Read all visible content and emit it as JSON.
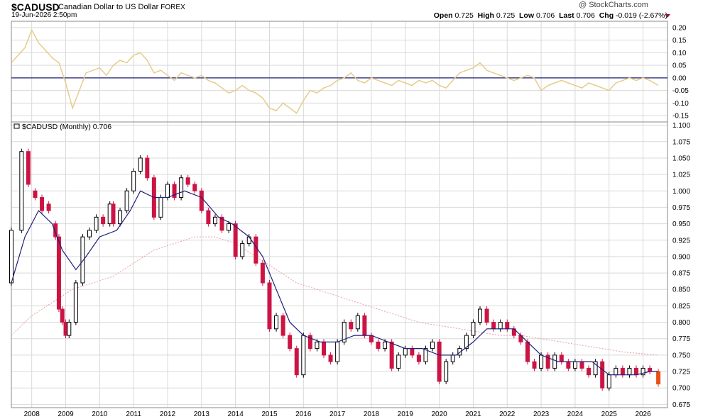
{
  "header": {
    "symbol": "$CADUSD",
    "description": "Canadian Dollar to US Dollar",
    "exchange": "FOREX",
    "timestamp": "19-Jun-2026 2:50pm",
    "watermark": "@ StockCharts.com",
    "quote": {
      "open_label": "Open",
      "open": "0.725",
      "high_label": "High",
      "high": "0.725",
      "low_label": "Low",
      "low": "0.706",
      "last_label": "Last",
      "last": "0.706",
      "chg_label": "Chg",
      "chg": "-0.019 (-2.67%)"
    }
  },
  "colors": {
    "up": "#000000",
    "down": "#cc1444",
    "last_bar": "#e8501a",
    "ma_short": "#1f1f7a",
    "ma_long": "#e8a0a0",
    "indicator": "#e6cc8a",
    "zero_line": "#1f1f7a",
    "grid": "#d9d9d9"
  },
  "chart_data": [
    {
      "type": "line",
      "panel": "indicator",
      "ylim": [
        -0.175,
        0.225
      ],
      "yticks": [
        "0.20",
        "0.15",
        "0.10",
        "0.05",
        "0.00",
        "-0.05",
        "-0.10",
        "-0.15"
      ],
      "reference_line": 0.0,
      "series": [
        {
          "x": [
            2007.4,
            2007.6,
            2007.8,
            2008.0,
            2008.2,
            2008.4,
            2008.6,
            2008.8,
            2009.0,
            2009.2,
            2009.4,
            2009.6,
            2009.8,
            2010.0,
            2010.2,
            2010.4,
            2010.6,
            2010.8,
            2011.0,
            2011.2,
            2011.4,
            2011.6,
            2011.8,
            2012.0,
            2012.2,
            2012.4,
            2012.6,
            2012.8,
            2013.0,
            2013.2,
            2013.4,
            2013.6,
            2013.8,
            2014.0,
            2014.2,
            2014.4,
            2014.6,
            2014.8,
            2015.0,
            2015.2,
            2015.4,
            2015.6,
            2015.8,
            2016.0,
            2016.2,
            2016.4,
            2016.6,
            2016.8,
            2017.0,
            2017.2,
            2017.4,
            2017.6,
            2017.8,
            2018.0,
            2018.2,
            2018.4,
            2018.6,
            2018.8,
            2019.0,
            2019.2,
            2019.4,
            2019.6,
            2019.8,
            2020.0,
            2020.2,
            2020.4,
            2020.6,
            2020.8,
            2021.0,
            2021.2,
            2021.4,
            2021.6,
            2021.8,
            2022.0,
            2022.2,
            2022.4,
            2022.6,
            2022.8,
            2023.0,
            2023.2,
            2023.4,
            2023.6,
            2023.8,
            2024.0,
            2024.2,
            2024.4,
            2024.6,
            2024.8,
            2025.0,
            2025.2,
            2025.4,
            2025.6,
            2025.8,
            2026.0,
            2026.2,
            2026.45
          ],
          "values": [
            0.06,
            0.09,
            0.12,
            0.19,
            0.14,
            0.11,
            0.08,
            0.06,
            -0.02,
            -0.12,
            -0.05,
            0.02,
            0.03,
            0.04,
            0.01,
            0.05,
            0.07,
            0.06,
            0.09,
            0.1,
            0.07,
            0.02,
            0.03,
            0.01,
            -0.01,
            0.02,
            0.01,
            0.0,
            0.01,
            -0.01,
            -0.02,
            -0.04,
            -0.06,
            -0.05,
            -0.03,
            -0.05,
            -0.06,
            -0.08,
            -0.12,
            -0.13,
            -0.1,
            -0.12,
            -0.14,
            -0.09,
            -0.05,
            -0.06,
            -0.04,
            -0.03,
            -0.01,
            0.0,
            0.02,
            -0.01,
            -0.02,
            0.0,
            -0.01,
            -0.02,
            -0.03,
            -0.01,
            -0.02,
            -0.03,
            -0.01,
            -0.02,
            -0.01,
            -0.03,
            -0.04,
            -0.01,
            0.02,
            0.03,
            0.04,
            0.06,
            0.03,
            0.02,
            0.01,
            0.0,
            -0.01,
            0.0,
            0.01,
            0.0,
            -0.05,
            -0.03,
            -0.02,
            -0.01,
            -0.02,
            -0.03,
            -0.04,
            -0.02,
            -0.03,
            -0.04,
            -0.05,
            -0.02,
            -0.01,
            0.0,
            -0.01,
            0.0,
            -0.01,
            -0.03
          ]
        }
      ]
    },
    {
      "type": "candlestick",
      "panel": "price",
      "legend": "$CADUSD (Monthly) 0.706",
      "ylim": [
        0.67,
        1.105
      ],
      "yticks": [
        "1.100",
        "1.075",
        "1.050",
        "1.025",
        "1.000",
        "0.975",
        "0.950",
        "0.925",
        "0.900",
        "0.875",
        "0.850",
        "0.825",
        "0.800",
        "0.775",
        "0.750",
        "0.725",
        "0.700",
        "0.675"
      ],
      "xlim": [
        2007.4,
        2026.72
      ],
      "xticks": [
        "2008",
        "2009",
        "2010",
        "2011",
        "2012",
        "2013",
        "2014",
        "2015",
        "2016",
        "2017",
        "2018",
        "2019",
        "2020",
        "2021",
        "2022",
        "2023",
        "2024",
        "2025",
        "2026"
      ],
      "grid": true,
      "series": [
        {
          "name": "price",
          "values": [
            [
              2007.4,
              0.86,
              0.94
            ],
            [
              2007.7,
              0.94,
              1.06
            ],
            [
              2007.9,
              1.06,
              1.01
            ],
            [
              2008.1,
              1.0,
              0.99
            ],
            [
              2008.3,
              0.99,
              0.97
            ],
            [
              2008.5,
              0.98,
              0.97
            ],
            [
              2008.7,
              0.95,
              0.93
            ],
            [
              2008.8,
              0.93,
              0.82
            ],
            [
              2008.9,
              0.82,
              0.8
            ],
            [
              2009.0,
              0.8,
              0.78
            ],
            [
              2009.1,
              0.78,
              0.8
            ],
            [
              2009.3,
              0.8,
              0.86
            ],
            [
              2009.5,
              0.86,
              0.93
            ],
            [
              2009.7,
              0.93,
              0.94
            ],
            [
              2009.9,
              0.94,
              0.96
            ],
            [
              2010.1,
              0.96,
              0.95
            ],
            [
              2010.3,
              0.95,
              0.98
            ],
            [
              2010.4,
              0.98,
              0.95
            ],
            [
              2010.6,
              0.95,
              0.97
            ],
            [
              2010.8,
              0.97,
              1.0
            ],
            [
              2011.0,
              1.0,
              1.03
            ],
            [
              2011.2,
              1.03,
              1.05
            ],
            [
              2011.4,
              1.05,
              1.02
            ],
            [
              2011.6,
              1.02,
              0.96
            ],
            [
              2011.8,
              0.96,
              0.99
            ],
            [
              2012.0,
              0.99,
              1.01
            ],
            [
              2012.2,
              1.01,
              0.99
            ],
            [
              2012.4,
              0.99,
              1.02
            ],
            [
              2012.6,
              1.02,
              1.01
            ],
            [
              2012.8,
              1.01,
              1.0
            ],
            [
              2013.0,
              1.0,
              0.97
            ],
            [
              2013.2,
              0.97,
              0.95
            ],
            [
              2013.4,
              0.95,
              0.96
            ],
            [
              2013.6,
              0.96,
              0.94
            ],
            [
              2013.8,
              0.94,
              0.95
            ],
            [
              2014.0,
              0.95,
              0.9
            ],
            [
              2014.2,
              0.9,
              0.92
            ],
            [
              2014.4,
              0.92,
              0.93
            ],
            [
              2014.6,
              0.93,
              0.89
            ],
            [
              2014.8,
              0.89,
              0.86
            ],
            [
              2015.0,
              0.86,
              0.79
            ],
            [
              2015.2,
              0.79,
              0.81
            ],
            [
              2015.4,
              0.81,
              0.78
            ],
            [
              2015.6,
              0.78,
              0.76
            ],
            [
              2015.8,
              0.76,
              0.72
            ],
            [
              2016.0,
              0.72,
              0.78
            ],
            [
              2016.2,
              0.78,
              0.76
            ],
            [
              2016.4,
              0.76,
              0.77
            ],
            [
              2016.6,
              0.77,
              0.75
            ],
            [
              2016.8,
              0.75,
              0.74
            ],
            [
              2017.0,
              0.74,
              0.77
            ],
            [
              2017.2,
              0.77,
              0.8
            ],
            [
              2017.4,
              0.8,
              0.79
            ],
            [
              2017.6,
              0.79,
              0.81
            ],
            [
              2017.8,
              0.81,
              0.78
            ],
            [
              2018.0,
              0.78,
              0.77
            ],
            [
              2018.2,
              0.77,
              0.76
            ],
            [
              2018.4,
              0.76,
              0.77
            ],
            [
              2018.6,
              0.77,
              0.73
            ],
            [
              2018.8,
              0.73,
              0.75
            ],
            [
              2019.0,
              0.75,
              0.76
            ],
            [
              2019.2,
              0.76,
              0.75
            ],
            [
              2019.4,
              0.75,
              0.74
            ],
            [
              2019.6,
              0.74,
              0.76
            ],
            [
              2019.8,
              0.76,
              0.77
            ],
            [
              2020.0,
              0.77,
              0.71
            ],
            [
              2020.2,
              0.71,
              0.74
            ],
            [
              2020.4,
              0.74,
              0.75
            ],
            [
              2020.6,
              0.75,
              0.76
            ],
            [
              2020.8,
              0.76,
              0.78
            ],
            [
              2021.0,
              0.78,
              0.8
            ],
            [
              2021.2,
              0.8,
              0.82
            ],
            [
              2021.4,
              0.82,
              0.8
            ],
            [
              2021.6,
              0.8,
              0.79
            ],
            [
              2021.8,
              0.79,
              0.8
            ],
            [
              2022.0,
              0.8,
              0.79
            ],
            [
              2022.2,
              0.79,
              0.78
            ],
            [
              2022.4,
              0.78,
              0.77
            ],
            [
              2022.6,
              0.77,
              0.74
            ],
            [
              2022.8,
              0.74,
              0.73
            ],
            [
              2023.0,
              0.73,
              0.75
            ],
            [
              2023.2,
              0.75,
              0.73
            ],
            [
              2023.4,
              0.73,
              0.75
            ],
            [
              2023.6,
              0.75,
              0.74
            ],
            [
              2023.8,
              0.74,
              0.73
            ],
            [
              2024.0,
              0.73,
              0.74
            ],
            [
              2024.2,
              0.74,
              0.73
            ],
            [
              2024.4,
              0.73,
              0.72
            ],
            [
              2024.6,
              0.72,
              0.74
            ],
            [
              2024.8,
              0.74,
              0.7
            ],
            [
              2025.0,
              0.7,
              0.72
            ],
            [
              2025.2,
              0.72,
              0.73
            ],
            [
              2025.4,
              0.73,
              0.72
            ],
            [
              2025.6,
              0.72,
              0.73
            ],
            [
              2025.8,
              0.73,
              0.72
            ],
            [
              2026.0,
              0.72,
              0.73
            ],
            [
              2026.2,
              0.73,
              0.725
            ],
            [
              2026.45,
              0.725,
              0.706
            ]
          ]
        },
        {
          "name": "ma_short",
          "x": [
            2007.4,
            2007.8,
            2008.2,
            2008.6,
            2008.9,
            2009.3,
            2009.6,
            2010.0,
            2010.5,
            2010.9,
            2011.2,
            2011.6,
            2012.0,
            2012.5,
            2013.0,
            2013.5,
            2013.9,
            2014.4,
            2014.8,
            2015.2,
            2015.6,
            2016.0,
            2016.5,
            2017.0,
            2017.5,
            2018.0,
            2018.5,
            2019.0,
            2019.5,
            2020.0,
            2020.5,
            2021.0,
            2021.4,
            2021.8,
            2022.2,
            2022.6,
            2023.0,
            2023.5,
            2024.0,
            2024.5,
            2025.0,
            2025.4,
            2025.8,
            2026.2,
            2026.45
          ],
          "values": [
            0.86,
            0.93,
            0.97,
            0.95,
            0.91,
            0.88,
            0.9,
            0.93,
            0.94,
            0.97,
            1.0,
            0.99,
            0.99,
            1.0,
            0.99,
            0.96,
            0.95,
            0.93,
            0.9,
            0.85,
            0.8,
            0.78,
            0.77,
            0.77,
            0.78,
            0.78,
            0.77,
            0.76,
            0.76,
            0.75,
            0.75,
            0.77,
            0.79,
            0.79,
            0.79,
            0.77,
            0.75,
            0.74,
            0.74,
            0.74,
            0.72,
            0.72,
            0.72,
            0.725,
            0.725
          ]
        },
        {
          "name": "ma_long",
          "x": [
            2007.4,
            2008.0,
            2008.6,
            2009.2,
            2009.8,
            2010.4,
            2011.0,
            2011.6,
            2012.2,
            2012.8,
            2013.4,
            2014.0,
            2014.6,
            2015.2,
            2015.8,
            2016.4,
            2017.0,
            2017.6,
            2018.2,
            2018.8,
            2019.4,
            2020.0,
            2020.6,
            2021.2,
            2021.8,
            2022.4,
            2023.0,
            2023.6,
            2024.2,
            2024.8,
            2025.4,
            2026.0,
            2026.45
          ],
          "values": [
            0.78,
            0.81,
            0.83,
            0.85,
            0.86,
            0.87,
            0.89,
            0.91,
            0.92,
            0.93,
            0.93,
            0.92,
            0.9,
            0.88,
            0.86,
            0.85,
            0.84,
            0.83,
            0.82,
            0.81,
            0.8,
            0.795,
            0.79,
            0.785,
            0.78,
            0.78,
            0.775,
            0.77,
            0.765,
            0.76,
            0.755,
            0.752,
            0.75
          ]
        }
      ]
    }
  ]
}
